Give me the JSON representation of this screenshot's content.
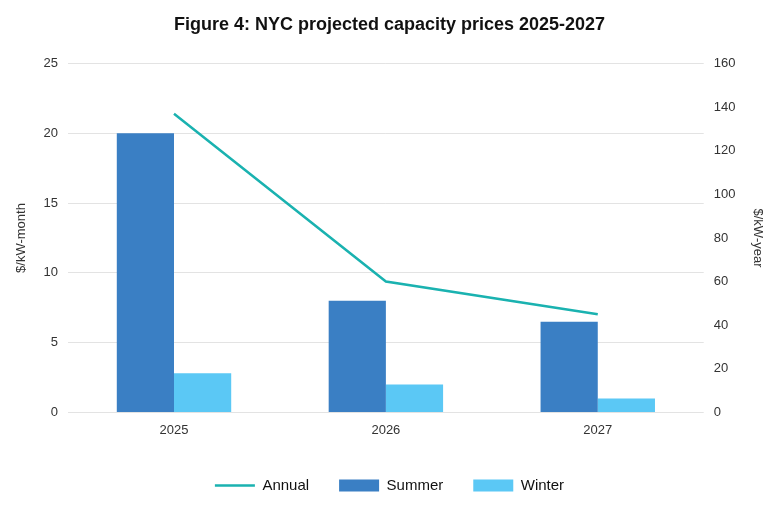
{
  "chart_data": {
    "type": "bar",
    "title": "Figure 4: NYC projected capacity prices 2025-2027",
    "categories": [
      "2025",
      "2026",
      "2027"
    ],
    "series": [
      {
        "name": "Summer",
        "color": "#3a7fc4",
        "values": [
          20,
          8,
          6.5
        ]
      },
      {
        "name": "Winter",
        "color": "#5bc8f5",
        "values": [
          2.8,
          2.0,
          1.0
        ]
      },
      {
        "name": "Annual",
        "type": "line",
        "color": "#1ab2b0",
        "axis": "y2",
        "values": [
          137,
          60,
          45
        ]
      }
    ],
    "y_label": "$/kW-month",
    "y2_label": "$/kW-year",
    "ylim": [
      0,
      25
    ],
    "yticks": [
      0,
      5,
      10,
      15,
      20,
      25
    ],
    "y2lim": [
      0,
      160
    ],
    "y2ticks": [
      0,
      20,
      40,
      60,
      80,
      100,
      120,
      140,
      160
    ],
    "grid": true,
    "legend": "bottom"
  }
}
